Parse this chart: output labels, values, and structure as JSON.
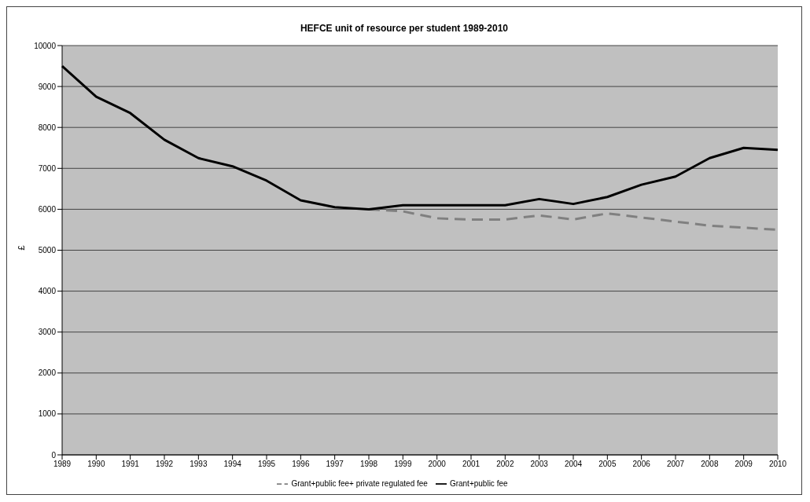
{
  "chart_data": {
    "type": "line",
    "title": "HEFCE unit of resource per student 1989-2010",
    "ylabel": "£",
    "categories": [
      "1989",
      "1990",
      "1991",
      "1992",
      "1993",
      "1994",
      "1995",
      "1996",
      "1997",
      "1998",
      "1999",
      "2000",
      "2001",
      "2002",
      "2003",
      "2004",
      "2005",
      "2006",
      "2007",
      "2008",
      "2009",
      "2010"
    ],
    "series": [
      {
        "name": "Grant+public fee+ private regulated fee",
        "color": "#808080",
        "line_style": "dashed",
        "values": [
          null,
          null,
          null,
          null,
          null,
          null,
          null,
          null,
          null,
          6000,
          5950,
          5780,
          5750,
          5750,
          5850,
          5750,
          5900,
          5800,
          5700,
          5600,
          5550,
          5500
        ]
      },
      {
        "name": "Grant+public fee",
        "color": "#000000",
        "line_style": "solid",
        "values": [
          9500,
          8750,
          8350,
          7700,
          7250,
          7050,
          6700,
          6220,
          6050,
          6000,
          6100,
          6100,
          6100,
          6100,
          6250,
          6130,
          6300,
          6600,
          6800,
          7250,
          7500,
          7450
        ]
      }
    ],
    "ylim": [
      0,
      10000
    ],
    "yticks": [
      0,
      1000,
      2000,
      3000,
      4000,
      5000,
      6000,
      7000,
      8000,
      9000,
      10000
    ],
    "grid": "y",
    "legend": "bottom"
  }
}
